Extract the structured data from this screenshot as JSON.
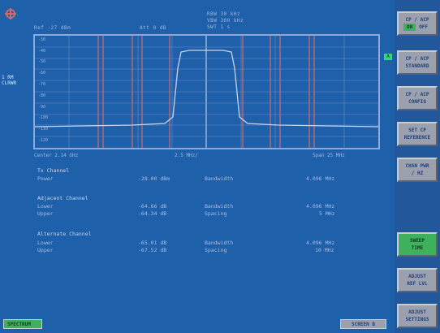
{
  "header": {
    "ref": "Ref -27 dBm",
    "att": "Att 0 dB",
    "rbw": "RBW 30 kHz",
    "vbw": "VBW 300 kHz",
    "swt": "SWT 1 s",
    "left_tag": "1 RM CLRWR",
    "trigger_marker": "A"
  },
  "plot": {
    "footer_left": "Center 2.14 GHz",
    "footer_mid": "2.5 MHz/",
    "footer_right": "Span 25 MHz",
    "trace_color": "#c7d3ee",
    "limit_color": "#d06a6a"
  },
  "results": {
    "tx_heading": "Tx Channel",
    "tx_power_label": "Power",
    "tx_power_value": "-28.00 dBm",
    "tx_bw_label": "Bandwidth",
    "tx_bw_value": "4.096 MHz",
    "adj_heading": "Adjacent Channel",
    "adj_lower_label": "Lower",
    "adj_lower_value": "-64.66 dB",
    "adj_bw_label": "Bandwidth",
    "adj_bw_value": "4.096 MHz",
    "adj_upper_label": "Upper",
    "adj_upper_value": "-64.34 dB",
    "adj_spacing_label": "Spacing",
    "adj_spacing_value": "5 MHz",
    "alt_heading": "Alternate Channel",
    "alt_lower_label": "Lower",
    "alt_lower_value": "-65.01 dB",
    "alt_bw_label": "Bandwidth",
    "alt_bw_value": "4.096 MHz",
    "alt_upper_label": "Upper",
    "alt_upper_value": "-67.52 dB",
    "alt_spacing_label": "Spacing",
    "alt_spacing_value": "10 MHz"
  },
  "softkeys": {
    "cp_acp_onoff_1": "CP / ACP",
    "on": "ON",
    "off": "OFF",
    "cp_acp_std_1": "CP / ACP",
    "cp_acp_std_2": "STANDARD",
    "cp_acp_cfg_1": "CP / ACP",
    "cp_acp_cfg_2": "CONFIG",
    "set_cp_1": "SET CP",
    "set_cp_2": "REFERENCE",
    "chan_pwr_1": "CHAN PWR",
    "chan_pwr_2": "/ HZ",
    "sweep_1": "SWEEP",
    "sweep_2": "TIME",
    "adj_ref_1": "ADJUST",
    "adj_ref_2": "REF LVL",
    "adj_set_1": "ADJUST",
    "adj_set_2": "SETTINGS"
  },
  "tabs": {
    "spectrum": "SPECTRUM",
    "screen_b": "SCREEN B"
  }
}
